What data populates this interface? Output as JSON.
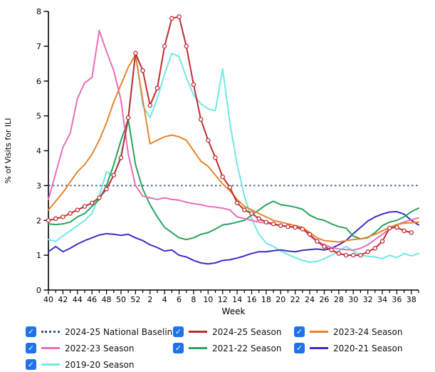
{
  "chart_data": {
    "type": "line",
    "title": "",
    "xlabel": "Week",
    "ylabel": "% of Visits for ILI",
    "ylim": [
      0,
      8
    ],
    "y_ticks": [
      0,
      1,
      2,
      3,
      4,
      5,
      6,
      7,
      8
    ],
    "grid": false,
    "legend_position": "bottom",
    "x": [
      40,
      41,
      42,
      43,
      44,
      45,
      46,
      47,
      48,
      49,
      50,
      51,
      52,
      1,
      2,
      3,
      4,
      5,
      6,
      7,
      8,
      9,
      10,
      11,
      12,
      13,
      14,
      15,
      16,
      17,
      18,
      19,
      20,
      21,
      22,
      23,
      24,
      25,
      26,
      27,
      28,
      29,
      30,
      31,
      32,
      33,
      34,
      35,
      36,
      37,
      38,
      39
    ],
    "x_tick_labels": [
      40,
      42,
      44,
      46,
      48,
      50,
      52,
      2,
      4,
      6,
      8,
      10,
      12,
      14,
      16,
      18,
      20,
      22,
      24,
      26,
      28,
      30,
      32,
      34,
      36,
      38
    ],
    "baseline": {
      "label": "2024-25 National Baseline",
      "value": 3.0,
      "color": "#2f5b82",
      "style": "dotted"
    },
    "series": [
      {
        "name": "2024-25 Season",
        "color": "#be2d32",
        "marker": "circle",
        "values": [
          2.0,
          2.05,
          2.1,
          2.2,
          2.3,
          2.4,
          2.5,
          2.65,
          2.9,
          3.3,
          3.8,
          4.95,
          6.8,
          6.3,
          5.3,
          5.8,
          7.0,
          7.8,
          7.85,
          7.0,
          5.9,
          4.9,
          4.3,
          3.8,
          3.25,
          2.95,
          2.5,
          2.3,
          2.2,
          2.05,
          1.95,
          1.9,
          1.85,
          1.82,
          1.8,
          1.75,
          1.6,
          1.4,
          1.25,
          1.15,
          1.05,
          1.0,
          1.0,
          1.0,
          1.1,
          1.2,
          1.4,
          1.78,
          1.8,
          1.7,
          1.65,
          null
        ]
      },
      {
        "name": "2023-24 Season",
        "color": "#e8842d",
        "marker": "none",
        "values": [
          2.3,
          2.55,
          2.8,
          3.1,
          3.4,
          3.6,
          3.9,
          4.3,
          4.8,
          5.4,
          5.9,
          6.4,
          6.75,
          5.45,
          4.2,
          4.3,
          4.4,
          4.45,
          4.4,
          4.3,
          4.0,
          3.7,
          3.55,
          3.3,
          3.05,
          2.85,
          2.6,
          2.4,
          2.3,
          2.2,
          2.1,
          2.0,
          1.95,
          1.9,
          1.85,
          1.8,
          1.65,
          1.5,
          1.42,
          1.4,
          1.38,
          1.42,
          1.45,
          1.47,
          1.52,
          1.6,
          1.7,
          1.8,
          1.88,
          1.92,
          1.93,
          1.95
        ]
      },
      {
        "name": "2022-23 Season",
        "color": "#eb6dbd",
        "marker": "none",
        "values": [
          2.6,
          3.35,
          4.1,
          4.5,
          5.5,
          5.95,
          6.1,
          7.45,
          6.85,
          6.3,
          5.45,
          3.9,
          3.0,
          2.7,
          2.65,
          2.6,
          2.65,
          2.6,
          2.58,
          2.52,
          2.48,
          2.45,
          2.4,
          2.38,
          2.35,
          2.3,
          2.1,
          2.05,
          2.0,
          1.95,
          1.92,
          1.88,
          1.85,
          1.83,
          1.8,
          1.78,
          1.55,
          1.4,
          1.3,
          1.22,
          1.18,
          1.16,
          1.15,
          1.2,
          1.3,
          1.45,
          1.6,
          1.75,
          1.88,
          1.95,
          2.02,
          2.07
        ]
      },
      {
        "name": "2021-22 Season",
        "color": "#29a35c",
        "marker": "none",
        "values": [
          1.9,
          1.88,
          1.9,
          1.95,
          2.1,
          2.2,
          2.4,
          2.6,
          3.0,
          3.6,
          4.3,
          4.9,
          3.6,
          2.9,
          2.45,
          2.1,
          1.8,
          1.65,
          1.5,
          1.45,
          1.5,
          1.6,
          1.65,
          1.75,
          1.87,
          1.9,
          1.95,
          2.0,
          2.15,
          2.3,
          2.45,
          2.55,
          2.45,
          2.42,
          2.38,
          2.32,
          2.15,
          2.05,
          2.0,
          1.9,
          1.82,
          1.78,
          1.55,
          1.47,
          1.5,
          1.65,
          1.85,
          1.95,
          2.0,
          2.1,
          2.25,
          2.35
        ]
      },
      {
        "name": "2020-21 Season",
        "color": "#3a2fc8",
        "marker": "none",
        "values": [
          1.1,
          1.25,
          1.1,
          1.2,
          1.32,
          1.42,
          1.5,
          1.58,
          1.62,
          1.6,
          1.57,
          1.6,
          1.5,
          1.42,
          1.3,
          1.22,
          1.12,
          1.15,
          1.0,
          0.95,
          0.85,
          0.78,
          0.75,
          0.78,
          0.85,
          0.87,
          0.92,
          0.98,
          1.05,
          1.1,
          1.1,
          1.13,
          1.15,
          1.12,
          1.1,
          1.14,
          1.16,
          1.18,
          1.15,
          1.2,
          1.3,
          1.42,
          1.62,
          1.8,
          1.98,
          2.1,
          2.18,
          2.24,
          2.25,
          2.18,
          2.0,
          1.87
        ]
      },
      {
        "name": "2019-20 Season",
        "color": "#6fe9e7",
        "marker": "none",
        "values": [
          1.45,
          1.4,
          1.55,
          1.7,
          1.85,
          2.0,
          2.2,
          2.7,
          3.4,
          3.25,
          3.9,
          4.85,
          6.85,
          5.3,
          4.95,
          5.5,
          6.2,
          6.8,
          6.7,
          6.1,
          5.6,
          5.35,
          5.2,
          5.15,
          6.35,
          4.8,
          3.6,
          2.7,
          2.05,
          1.6,
          1.35,
          1.25,
          1.12,
          1.02,
          0.93,
          0.85,
          0.8,
          0.82,
          0.9,
          1.0,
          1.12,
          1.25,
          1.12,
          1.0,
          0.97,
          0.95,
          0.9,
          1.0,
          0.93,
          1.05,
          0.98,
          1.05
        ]
      }
    ]
  },
  "legend": {
    "checkbox_color": "#1e73e8",
    "check_glyph": "✓",
    "items": [
      {
        "label": "2024-25 National Baseline",
        "color": "#2f5b82",
        "style": "dotted",
        "checked": true
      },
      {
        "label": "2024-25 Season",
        "color": "#be2d32",
        "style": "solid",
        "checked": true
      },
      {
        "label": "2023-24 Season",
        "color": "#e8842d",
        "style": "solid",
        "checked": true
      },
      {
        "label": "2022-23 Season",
        "color": "#eb6dbd",
        "style": "solid",
        "checked": true
      },
      {
        "label": "2021-22 Season",
        "color": "#29a35c",
        "style": "solid",
        "checked": true
      },
      {
        "label": "2020-21 Season",
        "color": "#3a2fc8",
        "style": "solid",
        "checked": true
      },
      {
        "label": "2019-20 Season",
        "color": "#6fe9e7",
        "style": "solid",
        "checked": true
      }
    ]
  }
}
